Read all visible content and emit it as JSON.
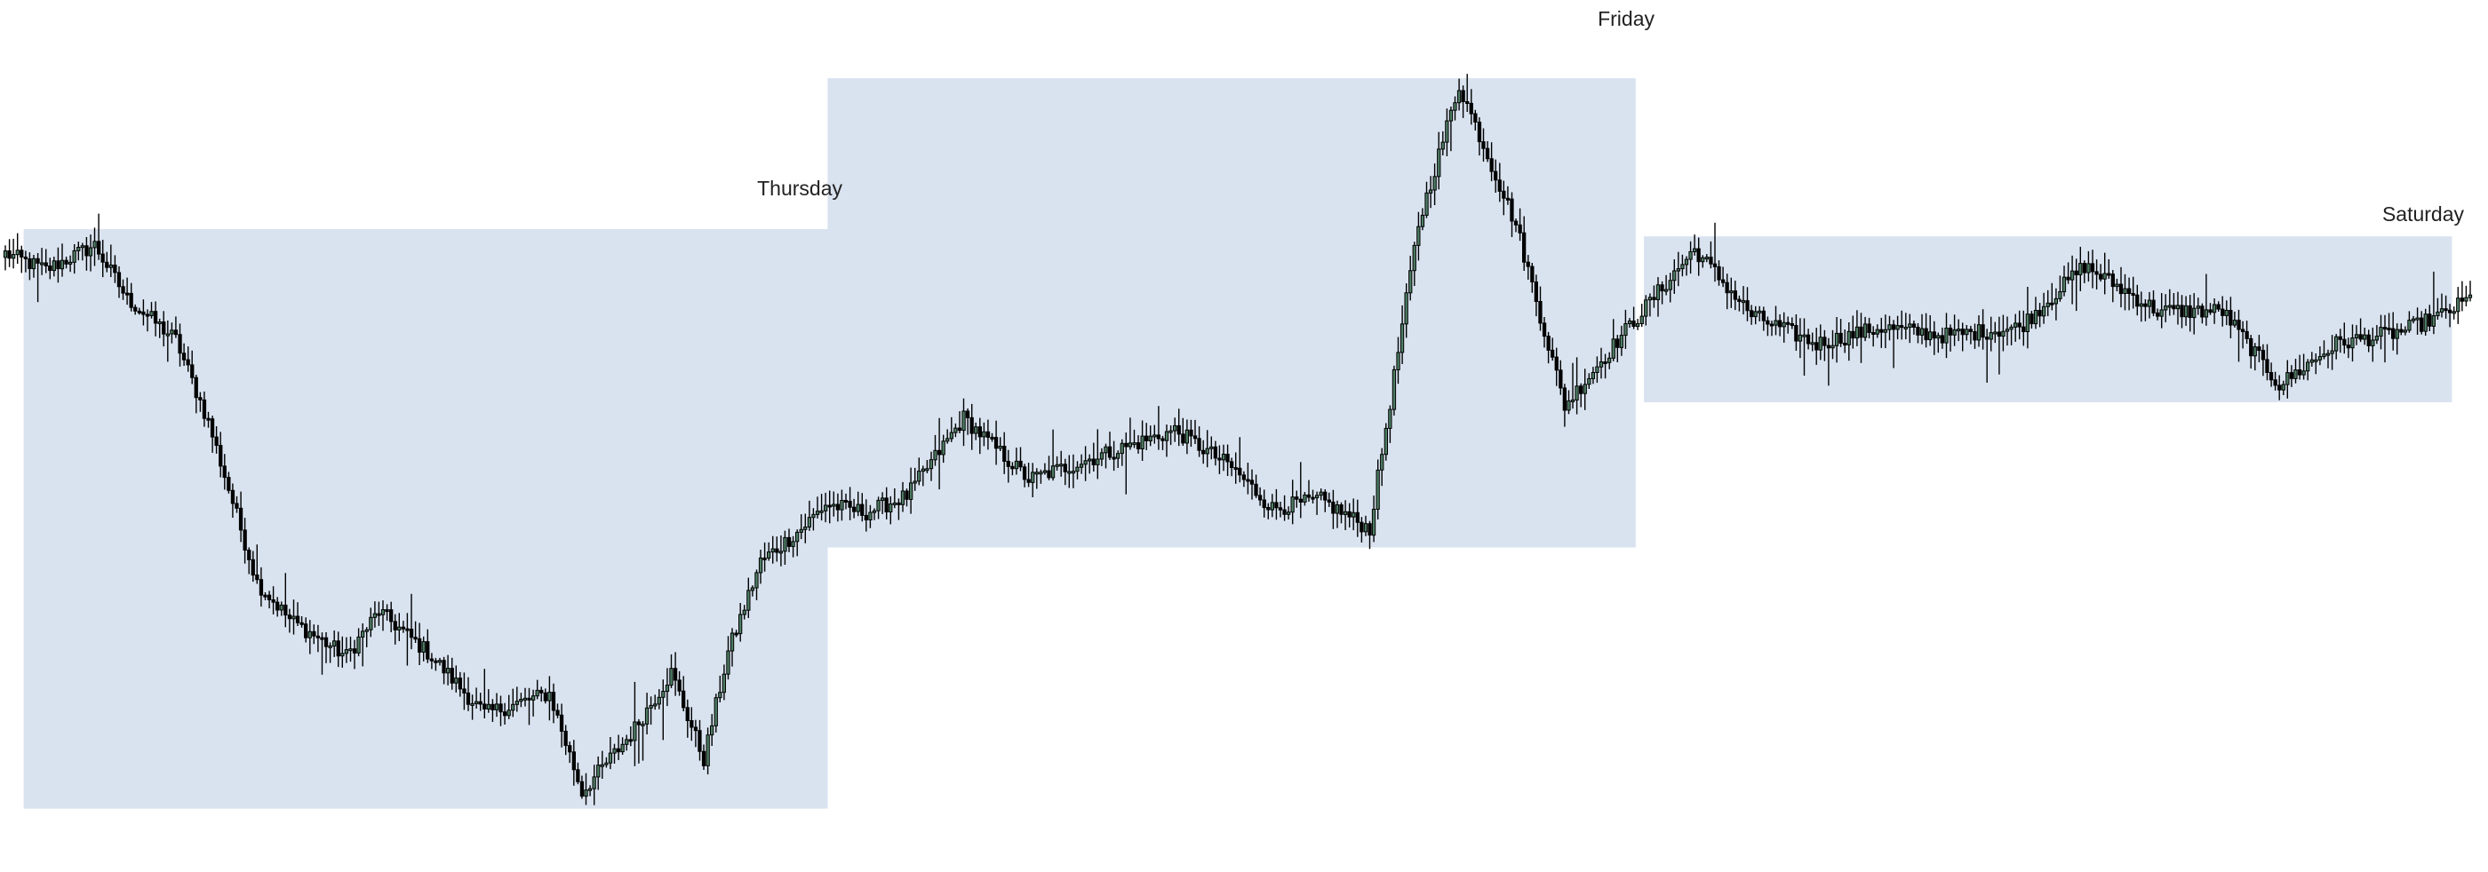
{
  "colors": {
    "background": "#ffffff",
    "session_box": "#d9e3f0",
    "candle_up": "#4e7d64",
    "candle_down": "#000000",
    "wick": "#000000",
    "label": "#222222"
  },
  "chart_data": {
    "type": "candlestick",
    "title": "",
    "xlabel": "",
    "ylabel": "",
    "axes_visible": false,
    "grid": false,
    "value_scale": "relative (0 = lowest low, 100 = highest high; no price axis is printed)",
    "ylim": [
      0,
      100
    ],
    "sessions": [
      {
        "label": "Thursday",
        "first_bar": 5,
        "last_bar": 202
      },
      {
        "label": "Friday",
        "first_bar": 203,
        "last_bar": 401
      },
      {
        "label": "Saturday",
        "first_bar": 404,
        "last_bar": 602
      }
    ],
    "bars_total": 608,
    "close_path": [
      [
        0,
        73.5
      ],
      [
        10,
        71.5
      ],
      [
        22,
        74.5
      ],
      [
        30,
        68
      ],
      [
        42,
        63
      ],
      [
        50,
        53
      ],
      [
        62,
        33.5
      ],
      [
        70,
        29
      ],
      [
        84,
        24.5
      ],
      [
        92,
        30
      ],
      [
        104,
        25
      ],
      [
        118,
        17.5
      ],
      [
        134,
        20
      ],
      [
        142,
        8
      ],
      [
        154,
        15
      ],
      [
        164,
        22.5
      ],
      [
        172,
        12
      ],
      [
        178,
        25
      ],
      [
        186,
        36
      ],
      [
        196,
        40
      ],
      [
        202,
        43
      ],
      [
        212,
        42
      ],
      [
        222,
        44
      ],
      [
        236,
        53.5
      ],
      [
        252,
        46
      ],
      [
        270,
        49
      ],
      [
        288,
        52
      ],
      [
        302,
        47.5
      ],
      [
        312,
        42.5
      ],
      [
        324,
        43.5
      ],
      [
        336,
        40
      ],
      [
        348,
        77
      ],
      [
        358,
        94
      ],
      [
        372,
        77
      ],
      [
        384,
        55
      ],
      [
        398,
        63.5
      ],
      [
        404,
        67
      ],
      [
        416,
        74
      ],
      [
        430,
        66
      ],
      [
        446,
        62.5
      ],
      [
        462,
        64.5
      ],
      [
        478,
        63.5
      ],
      [
        496,
        64.5
      ],
      [
        512,
        72
      ],
      [
        530,
        66.5
      ],
      [
        546,
        66.5
      ],
      [
        560,
        57.5
      ],
      [
        574,
        62.5
      ],
      [
        590,
        64
      ],
      [
        600,
        66
      ],
      [
        607,
        68
      ]
    ]
  },
  "labels": {
    "thursday": "Thursday",
    "friday": "Friday",
    "saturday": "Saturday"
  }
}
